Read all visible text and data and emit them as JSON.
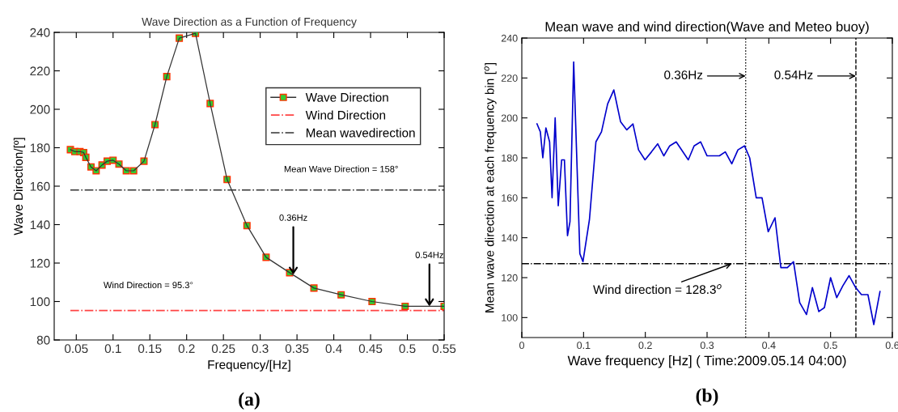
{
  "chart_data": [
    {
      "type": "line",
      "title": "Wave Direction as a Function of Frequency",
      "xlabel": "Frequency/[Hz]",
      "ylabel": "Wave Direction/[º]",
      "xlim": [
        0.02,
        0.55
      ],
      "ylim": [
        80,
        240
      ],
      "xticks": [
        0.05,
        0.1,
        0.15,
        0.2,
        0.25,
        0.3,
        0.35,
        0.4,
        0.45,
        0.5,
        0.55
      ],
      "yticks": [
        80,
        100,
        120,
        140,
        160,
        180,
        200,
        220,
        240
      ],
      "grid": false,
      "legend": "top right",
      "series": [
        {
          "name": "Wave Direction",
          "color": "#33cc33",
          "marker": "square",
          "line_style": "solid",
          "x": [
            0.042,
            0.048,
            0.055,
            0.06,
            0.063,
            0.07,
            0.077,
            0.085,
            0.092,
            0.1,
            0.108,
            0.118,
            0.128,
            0.142,
            0.157,
            0.173,
            0.19,
            0.212,
            0.232,
            0.255,
            0.282,
            0.308,
            0.34,
            0.373,
            0.41,
            0.452,
            0.497,
            0.55
          ],
          "values": [
            179,
            178,
            178,
            177.5,
            175,
            170,
            168,
            171,
            173,
            173.5,
            171.5,
            168,
            168,
            173,
            192,
            217,
            237,
            239.5,
            203,
            163.5,
            139.5,
            123,
            115,
            107,
            103.5,
            100,
            97.5,
            97.5
          ]
        },
        {
          "name": "Wind Direction",
          "color": "#ff4444",
          "marker": "none",
          "line_style": "dashdot",
          "x": [
            0.042,
            0.55
          ],
          "values": [
            95.3,
            95.3
          ]
        },
        {
          "name": "Mean wavedirection",
          "color": "#333333",
          "marker": "none",
          "line_style": "dashdot",
          "x": [
            0.042,
            0.55
          ],
          "values": [
            158,
            158
          ]
        }
      ],
      "annotations": [
        {
          "text": "Mean Wave Direction = 158°",
          "x": 0.41,
          "y": 158
        },
        {
          "text": "Wind Direction = 95.3°",
          "x": 0.148,
          "y": 95.3
        },
        {
          "text": "0.36Hz",
          "x": 0.345,
          "y": 114
        },
        {
          "text": "0.54Hz",
          "x": 0.53,
          "y": 97.5
        },
        "(a)"
      ]
    },
    {
      "type": "line",
      "title": "Mean wave and wind direction(Wave and Meteo buoy)",
      "xlabel": "Wave frequency [Hz] ( Time:2009.05.14 04:00)",
      "ylabel": "Mean wave direction at each frequency bin [$^{o}$]",
      "xlim": [
        0,
        0.6
      ],
      "ylim": [
        90,
        240
      ],
      "xticks": [
        0,
        0.1,
        0.2,
        0.3,
        0.4,
        0.5,
        0.6
      ],
      "yticks": [
        100,
        120,
        140,
        160,
        180,
        200,
        220,
        240
      ],
      "grid": false,
      "series": [
        {
          "color": "#0000cc",
          "marker": "none",
          "line_style": "solid",
          "x": [
            0.0246,
            0.03,
            0.034,
            0.039,
            0.045,
            0.049,
            0.054,
            0.059,
            0.0645,
            0.069,
            0.074,
            0.078,
            0.084,
            0.094,
            0.099,
            0.1095,
            0.12,
            0.129,
            0.139,
            0.149,
            0.16,
            0.17,
            0.18,
            0.189,
            0.1995,
            0.21,
            0.22,
            0.23,
            0.2395,
            0.25,
            0.2696,
            0.279,
            0.2896,
            0.3,
            0.32,
            0.3295,
            0.34,
            0.35,
            0.3606,
            0.369,
            0.3796,
            0.389,
            0.399,
            0.41,
            0.4195,
            0.43,
            0.44,
            0.45,
            0.461,
            0.4705,
            0.481,
            0.49,
            0.5,
            0.51,
            0.52,
            0.53,
            0.5406,
            0.55,
            0.5605,
            0.57,
            0.58
          ],
          "values": [
            197,
            193,
            180,
            195,
            188,
            160,
            200,
            156,
            179,
            179,
            141,
            148,
            228,
            132,
            128,
            149,
            188,
            193,
            207,
            214,
            198,
            194,
            197,
            184,
            179,
            183,
            187,
            181,
            186,
            188,
            179,
            186,
            188,
            181,
            181,
            183,
            177,
            184,
            186,
            180,
            160,
            160,
            143,
            150,
            125,
            125,
            128,
            107.5,
            101.5,
            115,
            103,
            105,
            120,
            110,
            116,
            121,
            115,
            111.5,
            111.5,
            96.5,
            113
          ]
        }
      ],
      "ref_lines": [
        {
          "axis": "y",
          "value": 127,
          "color": "#000000",
          "line_style": "dashdot"
        },
        {
          "axis": "x",
          "value": 0.3625,
          "color": "#000000",
          "line_style": "dotted"
        },
        {
          "axis": "x",
          "value": 0.541,
          "color": "#000000",
          "line_style": "dashed"
        }
      ],
      "annotations": [
        {
          "text": "0.36Hz",
          "x": 0.3625,
          "y": 221
        },
        {
          "text": "0.54Hz",
          "x": 0.541,
          "y": 221
        },
        {
          "text": "Wind direction = 128.3$^{o}$",
          "x": 0.34,
          "y": 127
        },
        "(b)"
      ]
    }
  ]
}
